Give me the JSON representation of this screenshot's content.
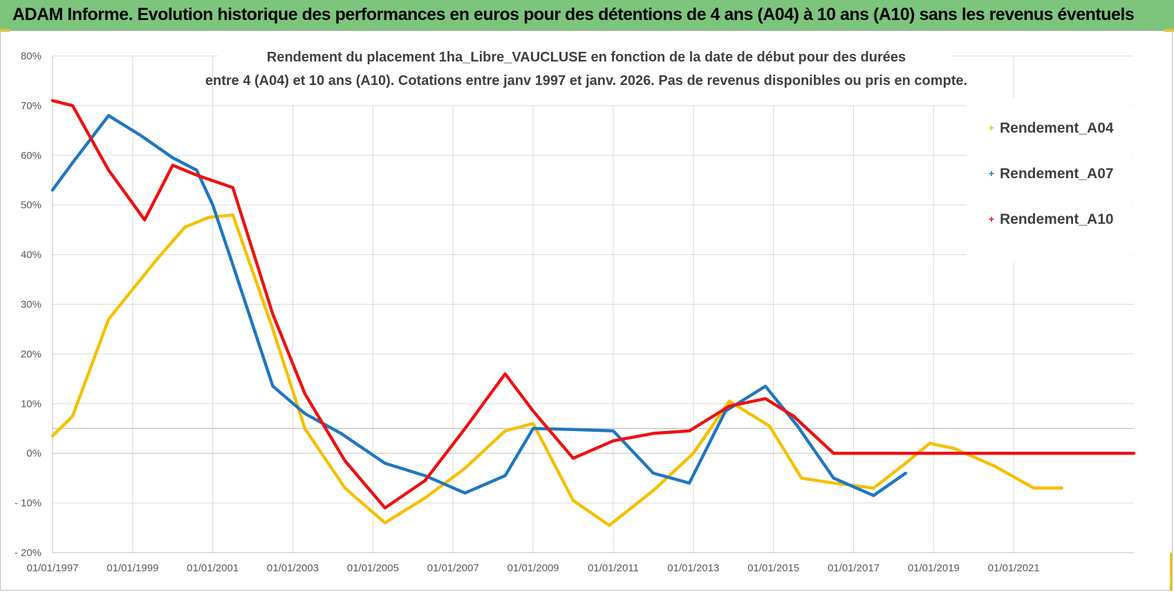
{
  "header": {
    "title": "ADAM Informe. Evolution historique des performances en euros pour des détentions de 4 ans (A04) à 10 ans (A10) sans les revenus éventuels"
  },
  "colors": {
    "header_bg": "#7dc47d",
    "accent_corner": "#f2c200",
    "A04": "#f5c000",
    "A07": "#1f77c0",
    "A10": "#ee1111"
  },
  "chart_data": {
    "type": "line",
    "title_line1": "Rendement du placement 1ha_Libre_VAUCLUSE en fonction de la date de début pour des durées",
    "title_line2": "entre 4 (A04) et 10 ans (A10).  Cotations entre janv 1997 et janv. 2026. Pas de revenus disponibles ou pris en compte.",
    "xlabel": "",
    "ylabel": "",
    "xlim": [
      1997,
      2024
    ],
    "ylim": [
      -20,
      80
    ],
    "y_ticks": [
      -20,
      -10,
      0,
      10,
      20,
      30,
      40,
      50,
      60,
      70,
      80
    ],
    "y_tick_labels": [
      "- 20%",
      "- 10%",
      "0%",
      "10%",
      "20%",
      "30%",
      "40%",
      "50%",
      "60%",
      "70%",
      "80%"
    ],
    "x_ticks": [
      1997,
      1999,
      2001,
      2003,
      2005,
      2007,
      2009,
      2011,
      2013,
      2015,
      2017,
      2019,
      2021
    ],
    "x_tick_labels": [
      "01/01/1997",
      "01/01/1999",
      "01/01/2001",
      "01/01/2003",
      "01/01/2005",
      "01/01/2007",
      "01/01/2009",
      "01/01/2011",
      "01/01/2013",
      "01/01/2015",
      "01/01/2017",
      "01/01/2019",
      "01/01/2021"
    ],
    "grid": true,
    "legend_position": "right",
    "series": [
      {
        "name": "Rendement_A04",
        "color": "#f5c000",
        "x": [
          1997.0,
          1997.5,
          1998.4,
          1999.0,
          1999.6,
          2000.3,
          2000.9,
          2001.5,
          2002.5,
          2003.3,
          2004.3,
          2005.3,
          2006.3,
          2007.3,
          2008.3,
          2009.0,
          2010.0,
          2010.9,
          2012.0,
          2013.0,
          2013.9,
          2014.9,
          2015.7,
          2016.5,
          2017.5,
          2018.3,
          2018.9,
          2019.5,
          2020.5,
          2021.5,
          2022.2
        ],
        "values": [
          3.5,
          7.5,
          27,
          33,
          39,
          45.5,
          47.5,
          48,
          25,
          5,
          -7,
          -14,
          -9,
          -3,
          4.5,
          6,
          -9.5,
          -14.5,
          -7.5,
          0,
          10.5,
          5.5,
          -5,
          -6,
          -7,
          -2,
          2,
          1,
          -2.5,
          -7,
          -7
        ]
      },
      {
        "name": "Rendement_A07",
        "color": "#1f77c0",
        "x": [
          1997.0,
          1997.5,
          1998.4,
          1999.2,
          2000.0,
          2000.6,
          2001.0,
          2001.5,
          2002.5,
          2003.3,
          2004.2,
          2005.3,
          2006.3,
          2007.3,
          2008.3,
          2009.0,
          2010.0,
          2011.0,
          2012.0,
          2012.9,
          2013.8,
          2014.8,
          2015.6,
          2016.5,
          2017.5,
          2018.3,
          2018.9
        ],
        "values": [
          53,
          58.5,
          68,
          64,
          59.5,
          57,
          50,
          38,
          13.5,
          8,
          4,
          -2,
          -4.5,
          -8,
          -4.5,
          5,
          4.8,
          4.5,
          -4,
          -6,
          8.5,
          13.5,
          5.5,
          -5,
          -8.5,
          -4,
          null
        ]
      },
      {
        "name": "Rendement_A10",
        "color": "#ee1111",
        "x": [
          1997.0,
          1997.5,
          1998.4,
          1999.3,
          2000.0,
          2000.6,
          2001.5,
          2002.5,
          2003.3,
          2004.3,
          2005.3,
          2006.3,
          2007.3,
          2008.3,
          2009.0,
          2010.0,
          2011.0,
          2012.0,
          2012.9,
          2013.9,
          2014.8,
          2015.5,
          2016.5,
          2017.5,
          2018.5,
          2019.5,
          2020.5,
          2021.5,
          2022.5,
          2023.5,
          2024.0
        ],
        "values": [
          71,
          70,
          57,
          47,
          58,
          56,
          53.5,
          28,
          12,
          -1.5,
          -11,
          -5.5,
          5,
          16,
          8.5,
          -1,
          2.5,
          4,
          4.5,
          9.5,
          11,
          7.5,
          0,
          0,
          0,
          0,
          0,
          0,
          0,
          0,
          0
        ]
      }
    ]
  }
}
